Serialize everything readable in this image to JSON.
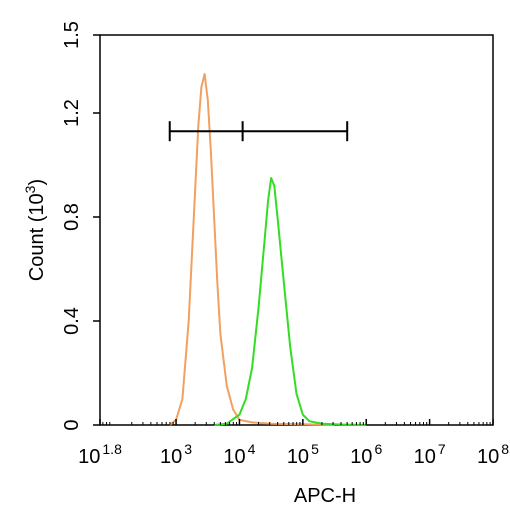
{
  "chart_data": {
    "type": "histogram",
    "title": "",
    "xlabel": "APC-H",
    "ylabel": {
      "prefix": "Count  (10",
      "exponent": "3",
      "suffix": ")"
    },
    "x_scale": "log10",
    "xlim_log10": [
      1.8,
      8
    ],
    "ylim": [
      0,
      1.5
    ],
    "grid": false,
    "legend": "none",
    "x_ticks": [
      {
        "log10": 1.8,
        "base": "10",
        "exp": "1.8"
      },
      {
        "log10": 3,
        "base": "10",
        "exp": "3"
      },
      {
        "log10": 4,
        "base": "10",
        "exp": "4"
      },
      {
        "log10": 5,
        "base": "10",
        "exp": "5"
      },
      {
        "log10": 6,
        "base": "10",
        "exp": "6"
      },
      {
        "log10": 7,
        "base": "10",
        "exp": "7"
      },
      {
        "log10": 8,
        "base": "10",
        "exp": "8"
      }
    ],
    "y_ticks": [
      {
        "value": 0,
        "label": "0"
      },
      {
        "value": 0.4,
        "label": "0.4"
      },
      {
        "value": 0.8,
        "label": "0.8"
      },
      {
        "value": 1.2,
        "label": "1.2"
      },
      {
        "value": 1.5,
        "label": "1.5"
      }
    ],
    "gate": {
      "y": 1.13,
      "x_log10": [
        2.9,
        4.05,
        5.7
      ]
    },
    "series": [
      {
        "color": "#f0a060",
        "x_log10": [
          2.9,
          3.0,
          3.1,
          3.2,
          3.3,
          3.35,
          3.4,
          3.45,
          3.5,
          3.55,
          3.6,
          3.65,
          3.7,
          3.8,
          3.9,
          4.0,
          4.2,
          4.5,
          5.0,
          5.5
        ],
        "y": [
          0,
          0.02,
          0.1,
          0.4,
          0.9,
          1.15,
          1.3,
          1.35,
          1.25,
          1.05,
          0.8,
          0.55,
          0.35,
          0.15,
          0.06,
          0.02,
          0.01,
          0.005,
          0.003,
          0
        ]
      },
      {
        "color": "#33dd22",
        "x_log10": [
          3.6,
          3.8,
          4.0,
          4.1,
          4.2,
          4.3,
          4.4,
          4.45,
          4.5,
          4.55,
          4.6,
          4.7,
          4.8,
          4.9,
          5.0,
          5.1,
          5.3,
          5.6,
          6.0
        ],
        "y": [
          0,
          0.005,
          0.04,
          0.1,
          0.22,
          0.45,
          0.72,
          0.86,
          0.95,
          0.92,
          0.8,
          0.55,
          0.3,
          0.12,
          0.04,
          0.015,
          0.005,
          0.002,
          0
        ]
      }
    ]
  }
}
